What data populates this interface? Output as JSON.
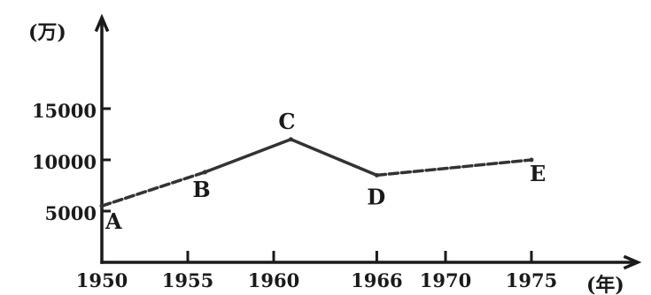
{
  "chart_data": {
    "type": "line",
    "ylabel": "(万)",
    "xlabel": "(年)",
    "x": [
      1950,
      1956,
      1961,
      1966,
      1975
    ],
    "series": [
      {
        "values": [
          5500,
          8800,
          12000,
          8500,
          10000
        ],
        "point_labels": [
          "A",
          "B",
          "C",
          "D",
          "E"
        ]
      }
    ],
    "x_ticks": [
      1950,
      1955,
      1960,
      1966,
      1970,
      1975
    ],
    "x_tick_labels": [
      "1950",
      "1955",
      "1960",
      "1966",
      "1970",
      "1975"
    ],
    "y_ticks": [
      5000,
      10000,
      15000
    ],
    "y_tick_labels": [
      "5000",
      "10000",
      "15000"
    ],
    "ylim": [
      0,
      18000
    ],
    "grid": false
  }
}
